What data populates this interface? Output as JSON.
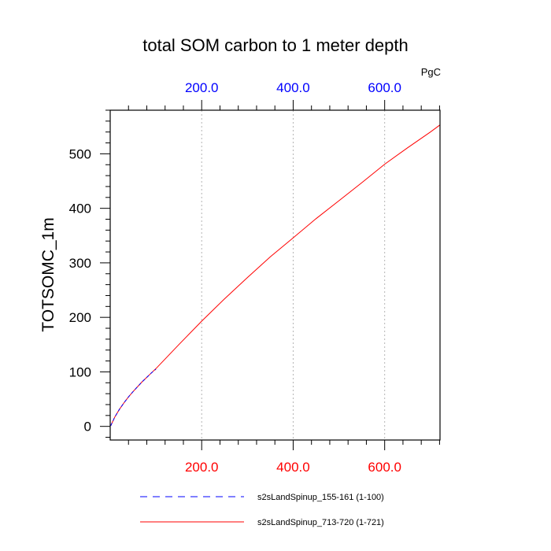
{
  "chart_data": {
    "type": "line",
    "title": "total SOM carbon to 1 meter depth",
    "ylabel": "TOTSOMC_1m",
    "top_axis_unit": "PgC",
    "xlim": [
      0,
      721
    ],
    "ylim": [
      -25,
      580
    ],
    "x_ticks": [
      200,
      400,
      600
    ],
    "x_tick_labels": [
      "200.0",
      "400.0",
      "600.0"
    ],
    "y_ticks": [
      0,
      100,
      200,
      300,
      400,
      500
    ],
    "y_tick_labels": [
      "0",
      "100",
      "200",
      "300",
      "400",
      "500"
    ],
    "bottom_tick_color": "#ff0000",
    "top_tick_color": "#0000ff",
    "grid": "vertical dotted at major x ticks",
    "legend_position": "bottom",
    "series": [
      {
        "name": "s2sLandSpinup_155-161 (1-100)",
        "color": "#0000ff",
        "dash": "dashed",
        "x": [
          1,
          10,
          20,
          30,
          40,
          50,
          60,
          70,
          80,
          90,
          100
        ],
        "y": [
          1,
          17,
          31,
          43,
          54,
          64,
          73,
          82,
          90,
          98,
          105
        ]
      },
      {
        "name": "s2sLandSpinup_713-720 (1-721)",
        "color": "#ff0000",
        "dash": "solid",
        "x": [
          1,
          10,
          20,
          30,
          40,
          50,
          60,
          70,
          80,
          90,
          100,
          150,
          200,
          250,
          300,
          350,
          400,
          450,
          500,
          550,
          600,
          650,
          700,
          721
        ],
        "y": [
          1,
          17,
          31,
          43,
          54,
          64,
          73,
          82,
          90,
          98,
          106,
          150,
          193,
          234,
          273,
          311,
          346,
          381,
          414,
          447,
          481,
          511,
          540,
          553
        ]
      }
    ]
  }
}
